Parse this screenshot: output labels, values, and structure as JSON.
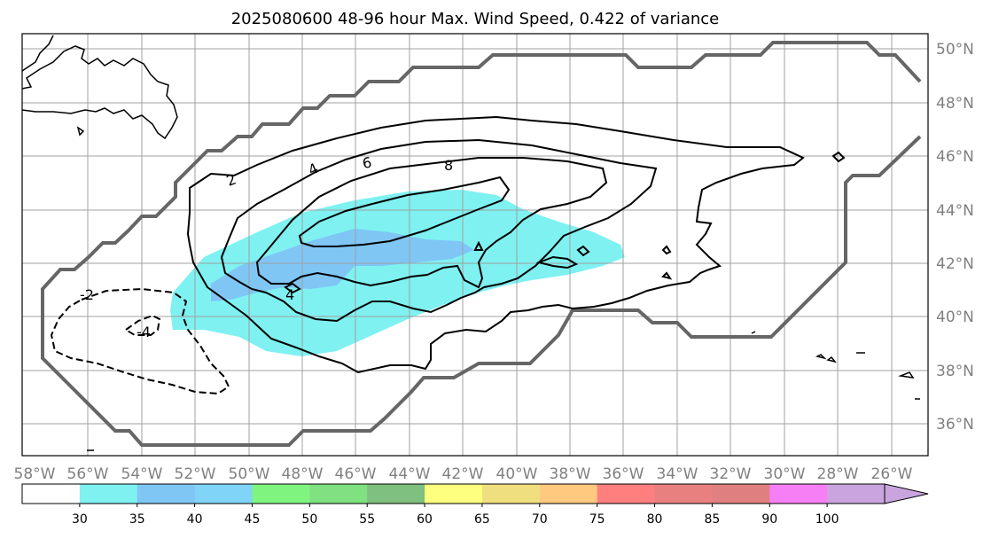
{
  "title": "2025080600 48-96 hour Max. Wind Speed, 0.422 of variance",
  "lon_labels": [
    "58°W",
    "56°W",
    "54°W",
    "52°W",
    "50°W",
    "48°W",
    "46°W",
    "44°W",
    "42°W",
    "40°W",
    "38°W",
    "36°W",
    "34°W",
    "32°W",
    "30°W",
    "28°W",
    "26°W"
  ],
  "lat_labels": [
    "50°N",
    "48°N",
    "46°N",
    "44°N",
    "42°N",
    "40°N",
    "38°N",
    "36°N"
  ],
  "contour_labels": [
    "2",
    "4",
    "6",
    "8",
    "4",
    "-2",
    "-4"
  ],
  "colorbar": {
    "ticks": [
      "30",
      "35",
      "40",
      "45",
      "50",
      "55",
      "60",
      "65",
      "70",
      "75",
      "80",
      "85",
      "90",
      "100"
    ],
    "colors": [
      "#ffffff",
      "#7ff1f1",
      "#7fc6f5",
      "#7fd4f7",
      "#7ff57f",
      "#7fe17f",
      "#7fbf7f",
      "#ffff7f",
      "#f0df7f",
      "#ffc97f",
      "#ff7f7f",
      "#e98080",
      "#e07f7f",
      "#f77ff5",
      "#c9a4de"
    ]
  }
}
